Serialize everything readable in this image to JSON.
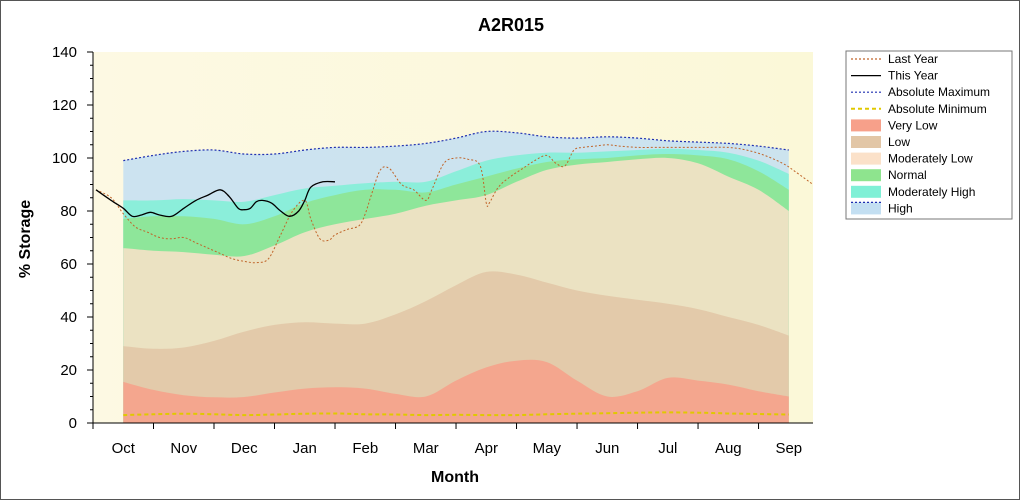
{
  "chart_data": {
    "type": "area",
    "title": "A2R015",
    "xlabel": "Month",
    "ylabel": "% Storage",
    "ylim": [
      0,
      140
    ],
    "yticks": [
      0,
      20,
      40,
      60,
      80,
      100,
      120,
      140
    ],
    "xlim": [
      -0.5,
      11.4
    ],
    "categories": [
      "Oct",
      "Nov",
      "Dec",
      "Jan",
      "Feb",
      "Mar",
      "Apr",
      "May",
      "Jun",
      "Jul",
      "Aug",
      "Sep"
    ],
    "colors": {
      "plot_bg_left": "#fdf9e3",
      "plot_bg_right": "#fbf8d8",
      "very_low": "#f7a08a",
      "low": "#e2c6a6",
      "moderately_low": "#fbe1c9",
      "normal": "#8ee48e",
      "moderately_high": "#7ff0d6",
      "high": "#c3dff2",
      "last_year": "#c0652a",
      "this_year": "#000000",
      "abs_max": "#1f2fb0",
      "abs_min": "#e0c800"
    },
    "band_x": [
      0,
      0.5,
      1,
      1.5,
      2,
      2.5,
      3,
      3.5,
      4,
      4.5,
      5,
      5.5,
      6,
      6.5,
      7,
      7.5,
      8,
      8.5,
      9,
      9.5,
      10,
      10.5,
      11
    ],
    "bands": {
      "abs_min": [
        3,
        3.3,
        3.5,
        3.3,
        3,
        3.2,
        3.5,
        3.6,
        3.3,
        3.2,
        3,
        3.1,
        3,
        3,
        3.3,
        3.5,
        3.7,
        3.9,
        4,
        3.9,
        3.6,
        3.4,
        3.2
      ],
      "very_low": [
        15.5,
        12.5,
        10.5,
        9.7,
        9.8,
        11.5,
        13,
        13.5,
        13,
        11,
        10,
        16,
        21,
        23.5,
        23,
        16,
        10,
        12,
        17,
        16,
        14.5,
        12,
        10
      ],
      "low": [
        29,
        28,
        28.5,
        31,
        34.5,
        37,
        38,
        37.5,
        37.5,
        41,
        46,
        52,
        57,
        56,
        53,
        50,
        48,
        46.5,
        45,
        43,
        40,
        37,
        33
      ],
      "moderately_low": [
        66,
        65,
        64.5,
        63.5,
        63,
        67,
        72,
        75,
        77,
        79,
        82,
        84,
        86,
        91,
        95.5,
        97.5,
        98.5,
        99.5,
        100,
        98,
        93,
        88,
        80
      ],
      "normal": [
        77,
        78,
        78,
        77,
        75,
        78,
        83,
        86,
        88,
        88,
        87,
        90,
        93,
        96,
        98.5,
        99.5,
        100,
        101,
        101.5,
        101,
        99.5,
        95,
        88
      ],
      "moderately_high": [
        84,
        84,
        84.5,
        84,
        83.5,
        86,
        88.5,
        89.5,
        90.5,
        91,
        91,
        95,
        99,
        101,
        102,
        102,
        102.5,
        103,
        103.5,
        103,
        102,
        99,
        94
      ],
      "abs_max": [
        99,
        101,
        102.5,
        103,
        101.5,
        101.5,
        103,
        104,
        104,
        104.5,
        105.5,
        107.5,
        110,
        109.5,
        108,
        107.5,
        108,
        107.5,
        106.5,
        106,
        105.5,
        104.5,
        103
      ]
    },
    "series": [
      {
        "name": "Last Year",
        "x": [
          -0.45,
          -0.2,
          0,
          0.2,
          0.4,
          0.6,
          0.8,
          1.0,
          1.2,
          1.4,
          1.6,
          1.8,
          2.0,
          2.2,
          2.4,
          2.6,
          2.8,
          3.0,
          3.1,
          3.25,
          3.4,
          3.5,
          3.7,
          3.9,
          4.0,
          4.1,
          4.25,
          4.4,
          4.6,
          4.8,
          5.0,
          5.1,
          5.3,
          5.5,
          5.7,
          5.9,
          6.0,
          6.05,
          6.2,
          6.4,
          6.6,
          6.8,
          7.0,
          7.15,
          7.3,
          7.45,
          7.6,
          7.8,
          8.0,
          8.2,
          8.5,
          8.8,
          9.0,
          9.3,
          9.6,
          10.0,
          10.3,
          10.6,
          10.9,
          11.1,
          11.4
        ],
        "values": [
          88,
          85,
          79,
          74,
          72,
          70,
          69.5,
          70,
          68,
          66,
          64,
          62,
          61,
          60.5,
          62,
          71,
          80,
          84,
          77,
          69.5,
          69,
          71,
          73,
          74.5,
          79,
          86,
          95.5,
          96,
          90,
          88,
          84,
          88,
          98,
          100,
          99.5,
          97,
          83,
          83,
          89,
          93,
          96,
          99,
          101,
          98,
          97,
          103,
          104,
          104.5,
          105,
          104.5,
          104,
          104,
          104,
          104,
          104,
          104,
          103,
          101,
          98,
          95,
          90
        ]
      },
      {
        "name": "This Year",
        "x": [
          -0.45,
          -0.2,
          0,
          0.15,
          0.3,
          0.45,
          0.6,
          0.8,
          1.0,
          1.2,
          1.4,
          1.6,
          1.75,
          1.9,
          2.0,
          2.1,
          2.2,
          2.3,
          2.45,
          2.6,
          2.75,
          2.9,
          3.0,
          3.1,
          3.3,
          3.5
        ],
        "values": [
          88,
          84,
          81,
          78,
          78.5,
          79.5,
          78.5,
          78,
          81,
          84,
          86,
          88,
          85.5,
          81,
          80.5,
          81,
          83.5,
          84,
          83,
          80,
          78,
          80,
          84,
          89,
          91,
          91
        ]
      },
      {
        "name": "Absolute Maximum",
        "x": [
          0,
          0.5,
          1,
          1.5,
          2,
          2.5,
          3,
          3.5,
          4,
          4.5,
          5,
          5.5,
          6,
          6.5,
          7,
          7.5,
          8,
          8.5,
          9,
          9.5,
          10,
          10.5,
          11
        ],
        "values": [
          99,
          101,
          102.5,
          103,
          101.5,
          101.5,
          103,
          104,
          104,
          104.5,
          105.5,
          107.5,
          110,
          109.5,
          108,
          107.5,
          108,
          107.5,
          106.5,
          106,
          105.5,
          104.5,
          103
        ]
      },
      {
        "name": "Absolute Minimum",
        "x": [
          0,
          0.5,
          1,
          1.5,
          2,
          2.5,
          3,
          3.5,
          4,
          4.5,
          5,
          5.5,
          6,
          6.5,
          7,
          7.5,
          8,
          8.5,
          9,
          9.5,
          10,
          10.5,
          11
        ],
        "values": [
          3,
          3.3,
          3.5,
          3.3,
          3,
          3.2,
          3.5,
          3.6,
          3.3,
          3.2,
          3,
          3.1,
          3,
          3,
          3.3,
          3.5,
          3.7,
          3.9,
          4,
          3.9,
          3.6,
          3.4,
          3.2
        ]
      }
    ],
    "legend": {
      "position": "right",
      "items": [
        "Last Year",
        "This Year",
        "Absolute Maximum",
        "Absolute Minimum",
        "Very Low",
        "Low",
        "Moderately Low",
        "Normal",
        "Moderately High",
        "High"
      ]
    }
  }
}
